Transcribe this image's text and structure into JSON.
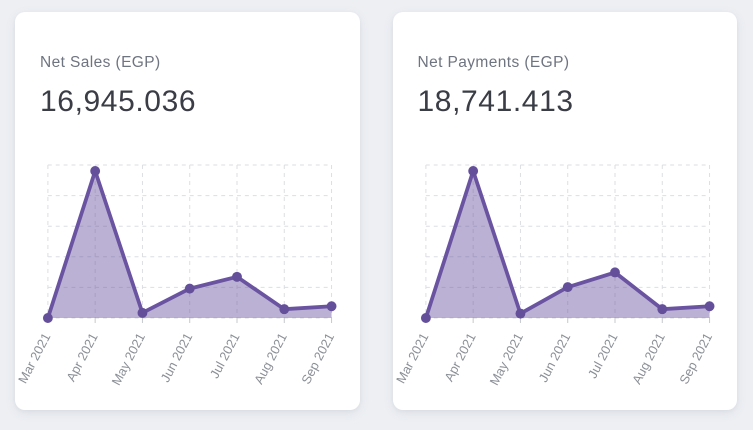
{
  "page": {
    "background_color": "#edeff3"
  },
  "theme": {
    "card_background": "#ffffff",
    "title_color": "#6e7480",
    "value_color": "#3a3c46",
    "line_color": "#6a53a0",
    "point_color": "#64509a",
    "area_fill_color": "rgba(105,82,160,0.45)",
    "grid_color": "#dcdee2",
    "tick_color": "#c5c8cd",
    "axis_label_color": "#8b9097"
  },
  "cards": [
    {
      "title": "Net Sales (EGP)",
      "value": "16,945.036"
    },
    {
      "title": "Net Payments (EGP)",
      "value": "18,741.413"
    }
  ],
  "chart_data": [
    {
      "type": "area",
      "title": "Net Sales (EGP) monthly trend",
      "categories": [
        "Mar 2021",
        "Apr 2021",
        "May 2021",
        "Jun 2021",
        "Jul 2021",
        "Aug 2021",
        "Sep 2021"
      ],
      "values": [
        0,
        100,
        3.5,
        20,
        28,
        6,
        8
      ],
      "xlabel": "",
      "ylabel": "",
      "ylim": [
        0,
        100
      ],
      "units": "percent of peak month (y-axis unlabeled in source)",
      "grid": true,
      "legend": false
    },
    {
      "type": "area",
      "title": "Net Payments (EGP) monthly trend",
      "categories": [
        "Mar 2021",
        "Apr 2021",
        "May 2021",
        "Jun 2021",
        "Jul 2021",
        "Aug 2021",
        "Sep 2021"
      ],
      "values": [
        0,
        100,
        3,
        21,
        31,
        6,
        8
      ],
      "xlabel": "",
      "ylabel": "",
      "ylim": [
        0,
        100
      ],
      "units": "percent of peak month (y-axis unlabeled in source)",
      "grid": true,
      "legend": false
    }
  ]
}
